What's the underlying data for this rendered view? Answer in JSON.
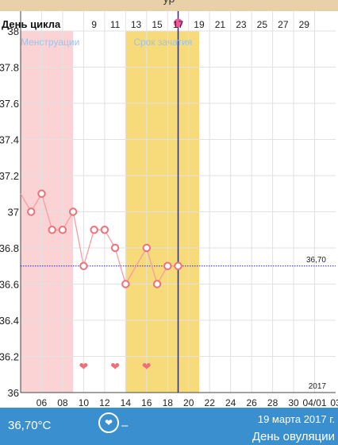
{
  "header": {
    "title_fragment": "ур"
  },
  "chart_data": {
    "type": "line",
    "top_axis_label": "День цикла",
    "top_axis_ticks": [
      "9",
      "11",
      "13",
      "15",
      "17",
      "19",
      "21",
      "23",
      "25",
      "27",
      "29"
    ],
    "x_tick_labels": [
      "06",
      "08",
      "10",
      "12",
      "14",
      "16",
      "18",
      "20",
      "22",
      "24",
      "26",
      "28",
      "30",
      "04/01",
      "03"
    ],
    "y_ticks": [
      "38",
      "37.8",
      "37.6",
      "37.4",
      "37.2",
      "37",
      "36.8",
      "36.6",
      "36.4",
      "36.2",
      "36"
    ],
    "ylim": [
      36,
      38
    ],
    "x_range_days": [
      4,
      34
    ],
    "year_label": "2017",
    "bands": [
      {
        "label": "Менструации",
        "from": 4,
        "to": 9,
        "color": "#fbd3d5",
        "text_color": "#9fc3e8"
      },
      {
        "label": "Срок зачатия",
        "from": 14,
        "to": 21,
        "color": "#f7da7a",
        "text_color": "#9fc3e8"
      }
    ],
    "coverline": {
      "value": 36.7,
      "label": "36,70",
      "color": "#1f1fd0"
    },
    "current_day": 19,
    "series": [
      {
        "line_color": "#f79da0",
        "marker_color": "#f07077",
        "points": [
          {
            "x": 4,
            "y": 37.1,
            "marker": false
          },
          {
            "x": 5,
            "y": 37.0,
            "marker": true
          },
          {
            "x": 6,
            "y": 37.1,
            "marker": true
          },
          {
            "x": 7,
            "y": 36.9,
            "marker": true
          },
          {
            "x": 8,
            "y": 36.9,
            "marker": true
          },
          {
            "x": 9,
            "y": 37.0,
            "marker": true
          },
          {
            "x": 10,
            "y": 36.7,
            "marker": true
          },
          {
            "x": 11,
            "y": 36.9,
            "marker": true
          },
          {
            "x": 12,
            "y": 36.9,
            "marker": true
          },
          {
            "x": 13,
            "y": 36.8,
            "marker": true
          },
          {
            "x": 14,
            "y": 36.6,
            "marker": true
          },
          {
            "x": 16,
            "y": 36.8,
            "marker": true
          },
          {
            "x": 17,
            "y": 36.6,
            "marker": true
          },
          {
            "x": 18,
            "y": 36.7,
            "marker": true
          },
          {
            "x": 19,
            "y": 36.7,
            "marker": true
          }
        ]
      }
    ],
    "hearts": [
      10,
      13,
      16
    ],
    "heart_color": "#f07077",
    "grid": true
  },
  "footer": {
    "temperature": "36,70°C",
    "heart_symbol": "❤",
    "dash": "–",
    "date": "19 марта 2017 г.",
    "status": "День овуляции"
  }
}
